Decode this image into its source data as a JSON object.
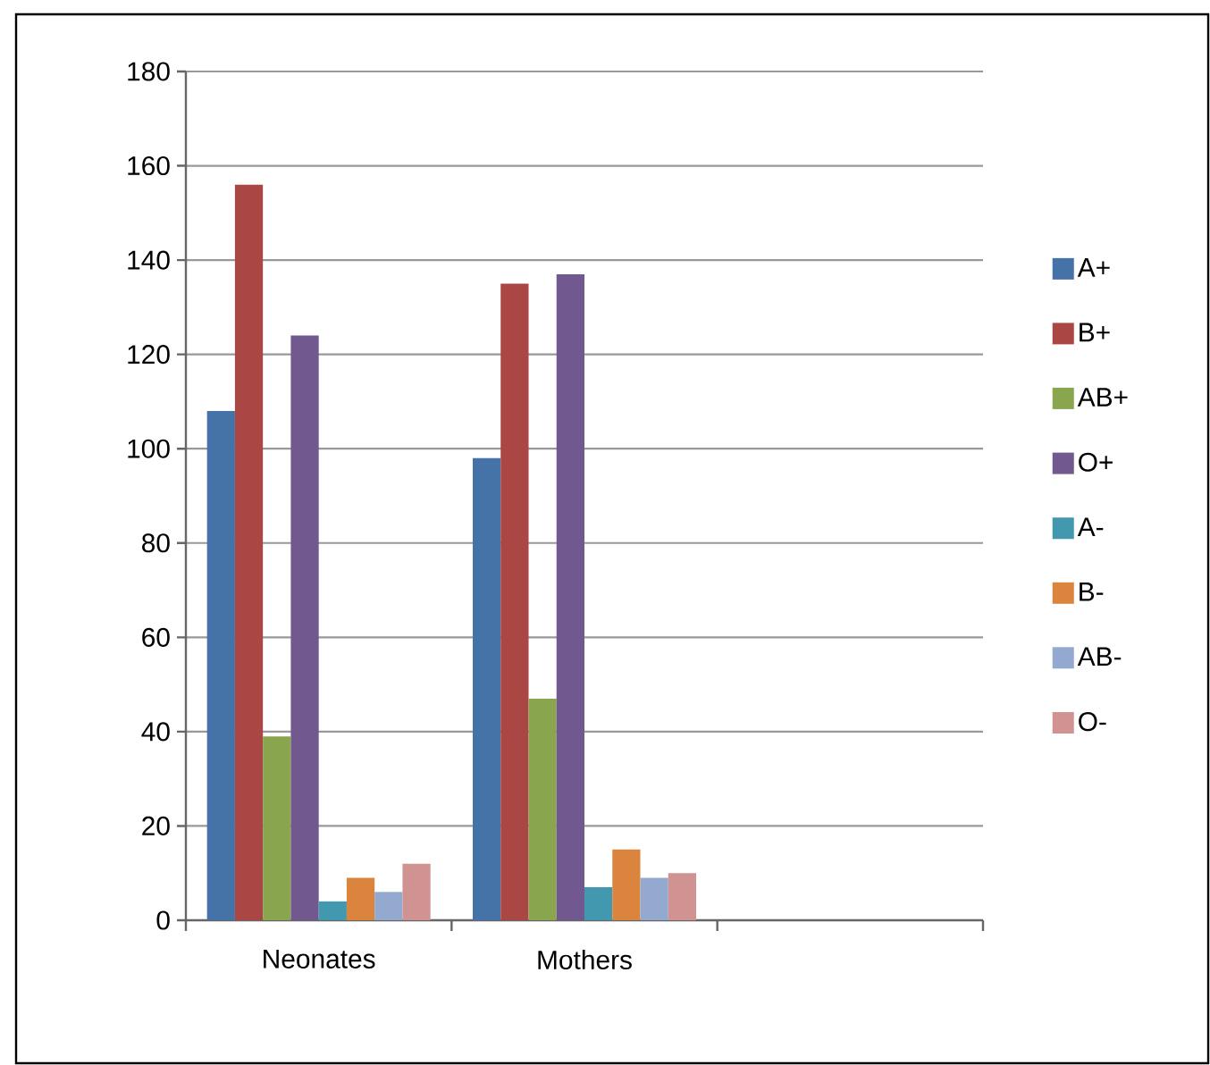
{
  "chart_data": {
    "type": "bar",
    "categories": [
      "Neonates",
      "Mothers",
      null
    ],
    "series": [
      {
        "name": "A+",
        "color": "#4572a7",
        "values": [
          108,
          98,
          null
        ]
      },
      {
        "name": "B+",
        "color": "#aa4643",
        "values": [
          156,
          135,
          null
        ]
      },
      {
        "name": "AB+",
        "color": "#89a54e",
        "values": [
          39,
          47,
          null
        ]
      },
      {
        "name": "O+",
        "color": "#71588f",
        "values": [
          124,
          137,
          null
        ]
      },
      {
        "name": "A-",
        "color": "#4198af",
        "values": [
          4,
          7,
          null
        ]
      },
      {
        "name": "B-",
        "color": "#db843d",
        "values": [
          9,
          15,
          null
        ]
      },
      {
        "name": "AB-",
        "color": "#93a9cf",
        "values": [
          6,
          9,
          null
        ]
      },
      {
        "name": "O-",
        "color": "#d19392",
        "values": [
          12,
          10,
          null
        ]
      }
    ],
    "ylim": [
      0,
      180
    ],
    "yticks": [
      0,
      20,
      40,
      60,
      80,
      100,
      120,
      140,
      160,
      180
    ],
    "grid": "y",
    "legend": "right"
  }
}
